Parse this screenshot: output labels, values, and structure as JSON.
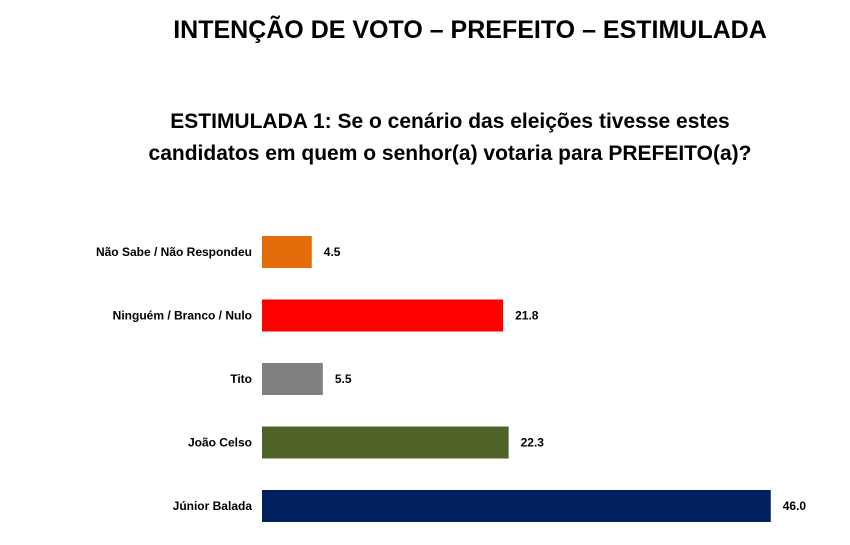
{
  "header": {
    "title": "INTENÇÃO DE VOTO – PREFEITO – ESTIMULADA",
    "question_line1": "ESTIMULADA 1: Se o cenário das eleições tivesse estes",
    "question_line2": "candidatos em quem o senhor(a) votaria para PREFEITO(a)?"
  },
  "chart_data": {
    "type": "bar",
    "orientation": "horizontal",
    "categories": [
      "Não Sabe / Não Respondeu",
      "Ninguém / Branco / Nulo",
      "Tito",
      "João Celso",
      "Júnior Balada"
    ],
    "values": [
      4.5,
      21.8,
      5.5,
      22.3,
      46.0
    ],
    "value_labels": [
      "4.5",
      "21.8",
      "5.5",
      "22.3",
      "46.0"
    ],
    "colors": [
      "#E36C09",
      "#FF0000",
      "#808080",
      "#4F6228",
      "#002060"
    ],
    "title": "",
    "xlabel": "",
    "ylabel": "",
    "xlim": [
      0,
      50
    ],
    "grid": false,
    "legend": "none"
  }
}
